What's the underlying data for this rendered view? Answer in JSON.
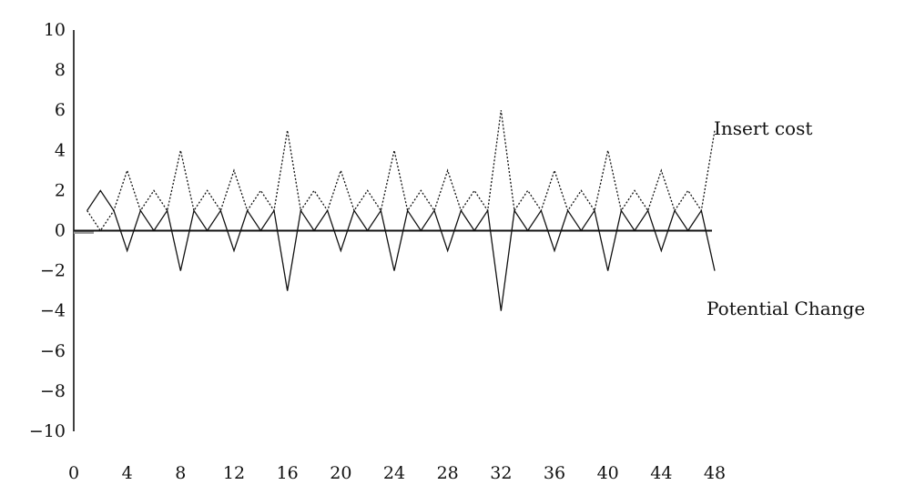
{
  "chart_data": {
    "type": "line",
    "xlim": [
      0,
      48
    ],
    "ylim": [
      -10,
      10
    ],
    "x_ticks": [
      0,
      4,
      8,
      12,
      16,
      20,
      24,
      28,
      32,
      36,
      40,
      44,
      48
    ],
    "y_ticks": [
      10,
      8,
      6,
      4,
      2,
      0,
      -2,
      -4,
      -6,
      -8,
      -10
    ],
    "y_tick_labels": [
      "10",
      "8",
      "6",
      "4",
      "2",
      "0",
      "−2",
      "−4",
      "−6",
      "−8",
      "−10"
    ],
    "x": [
      1,
      2,
      3,
      4,
      5,
      6,
      7,
      8,
      9,
      10,
      11,
      12,
      13,
      14,
      15,
      16,
      17,
      18,
      19,
      20,
      21,
      22,
      23,
      24,
      25,
      26,
      27,
      28,
      29,
      30,
      31,
      32,
      33,
      34,
      35,
      36,
      37,
      38,
      39,
      40,
      41,
      42,
      43,
      44,
      45,
      46,
      47,
      48
    ],
    "series": [
      {
        "name": "Insert cost",
        "style": "dotted",
        "values": [
          1,
          0,
          1,
          3,
          1,
          2,
          1,
          4,
          1,
          2,
          1,
          3,
          1,
          2,
          1,
          5,
          1,
          2,
          1,
          3,
          1,
          2,
          1,
          4,
          1,
          2,
          1,
          3,
          1,
          2,
          1,
          6,
          1,
          2,
          1,
          3,
          1,
          2,
          1,
          4,
          1,
          2,
          1,
          3,
          1,
          2,
          1,
          5
        ]
      },
      {
        "name": "Potential Change",
        "style": "solid",
        "values": [
          1,
          2,
          1,
          -1,
          1,
          0,
          1,
          -2,
          1,
          0,
          1,
          -1,
          1,
          0,
          1,
          -3,
          1,
          0,
          1,
          -1,
          1,
          0,
          1,
          -2,
          1,
          0,
          1,
          -1,
          1,
          0,
          1,
          -4,
          1,
          0,
          1,
          -1,
          1,
          0,
          1,
          -2,
          1,
          0,
          1,
          -1,
          1,
          0,
          1,
          -2
        ]
      }
    ],
    "grid": false,
    "legend": "inline labels at right"
  }
}
